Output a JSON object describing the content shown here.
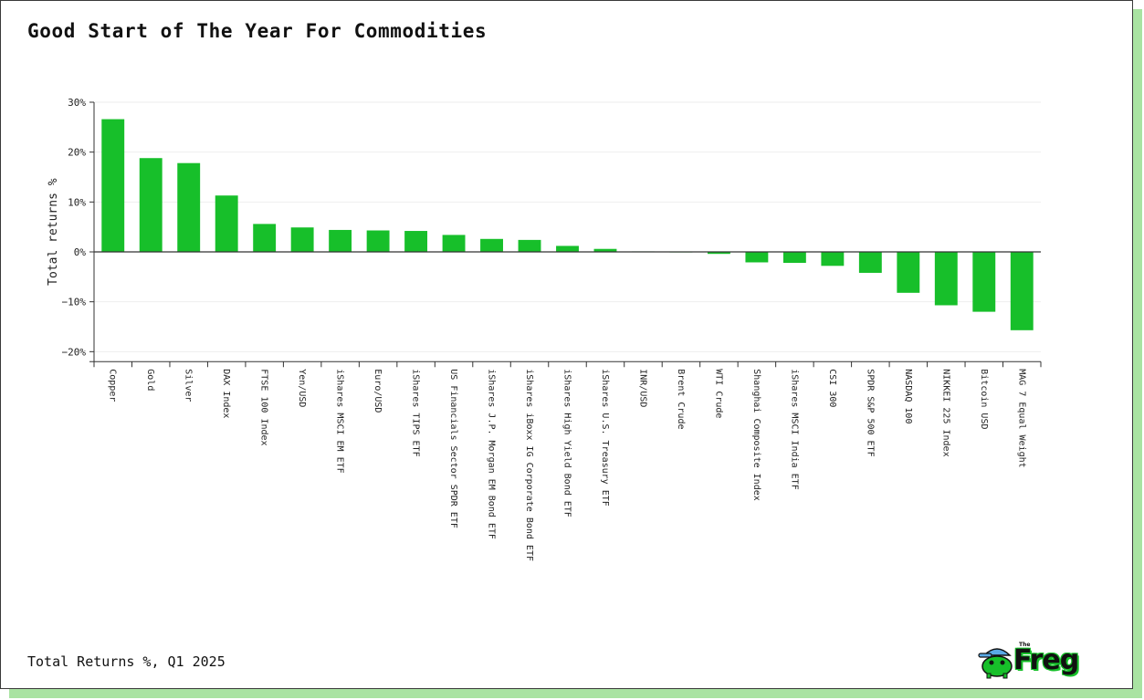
{
  "title": "Good Start of The Year For Commodities",
  "footnote": "Total Returns %, Q1 2025",
  "logo": {
    "small": "The",
    "word": "Freg"
  },
  "colors": {
    "bar": "#17bf2a",
    "accent_shadow": "#a9e3a2",
    "axis": "#333333",
    "grid": "#eeeeee"
  },
  "chart_data": {
    "type": "bar",
    "ylabel": "Total returns %",
    "xlabel": "",
    "ylim": [
      -22,
      30
    ],
    "yticks": [
      30,
      20,
      10,
      0,
      -10,
      -20
    ],
    "ytick_labels": [
      "30%",
      "20%",
      "10%",
      "0%",
      "−10%",
      "−20%"
    ],
    "grid": true,
    "categories": [
      "Copper",
      "Gold",
      "Silver",
      "DAX Index",
      "FTSE 100 Index",
      "Yen/USD",
      "iShares MSCI EM ETF",
      "Euro/USD",
      "iShares TIPS ETF",
      "US Financials Sector SPDR ETF",
      "iShares J.P. Morgan EM Bond ETF",
      "iShares iBoxx IG Corporate Bond ETF",
      "iShares High Yield Bond ETF",
      "iShares U.S. Treasury ETF",
      "INR/USD",
      "Brent Crude",
      "WTI Crude",
      "Shanghai Composite Index",
      "iShares MSCI India ETF",
      "CSI 300",
      "SPDR S&P 500 ETF",
      "NASDAQ 100",
      "NIKKEI 225 Index",
      "Bitcoin USD",
      "MAG 7 Equal Weight"
    ],
    "values": [
      26.6,
      18.8,
      17.8,
      11.3,
      5.6,
      4.9,
      4.4,
      4.3,
      4.2,
      3.4,
      2.6,
      2.4,
      1.2,
      0.6,
      0.1,
      -0.1,
      -0.4,
      -2.1,
      -2.2,
      -2.8,
      -4.2,
      -8.2,
      -10.7,
      -12.0,
      -15.7
    ]
  }
}
